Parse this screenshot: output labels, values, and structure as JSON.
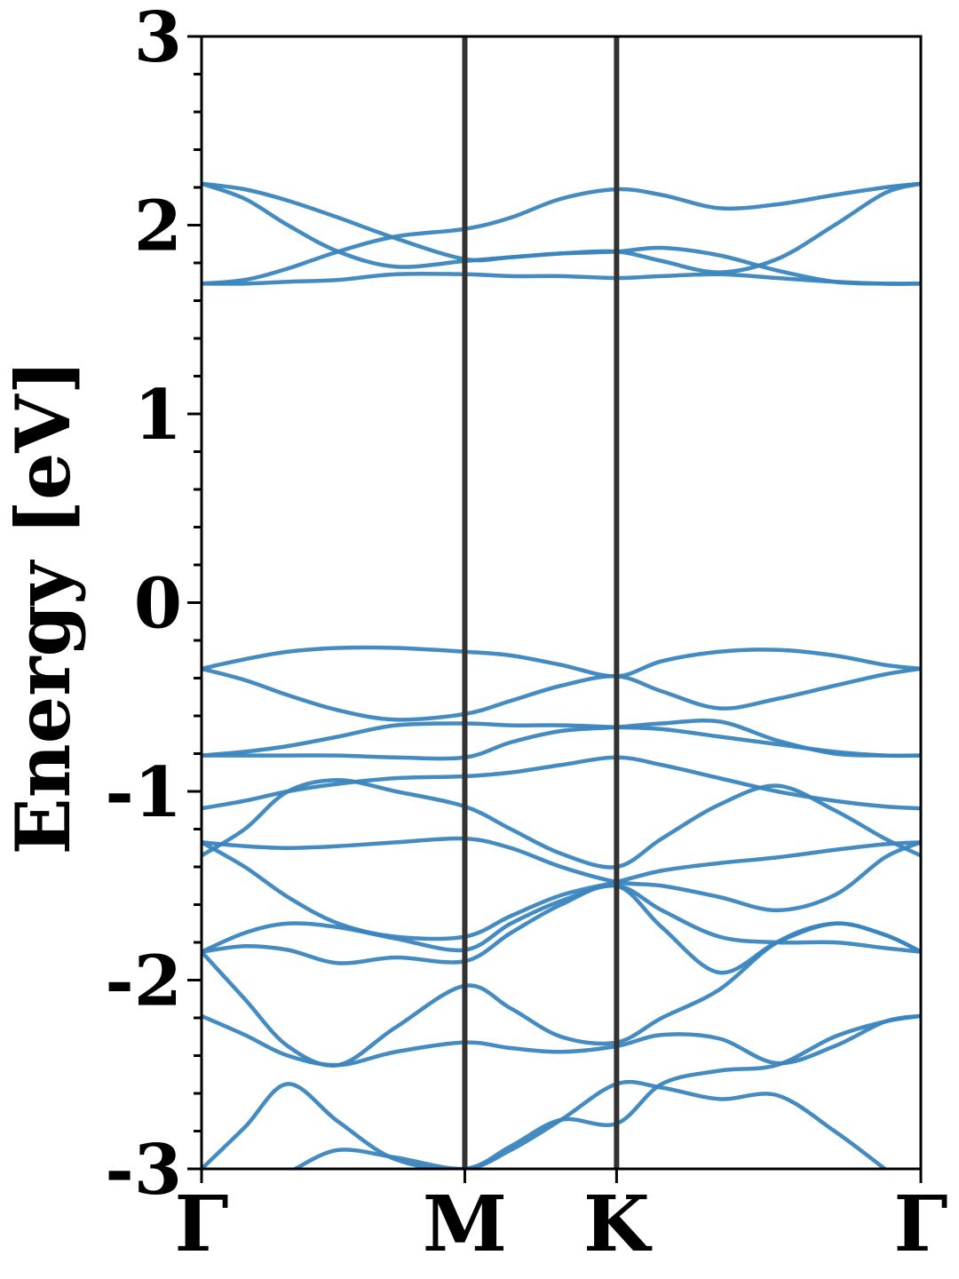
{
  "chart_data": {
    "type": "line",
    "ylabel": "Energy [eV]",
    "ylim": [
      -3,
      3
    ],
    "yticks": [
      {
        "value": 3,
        "label": "3"
      },
      {
        "value": 2,
        "label": "2"
      },
      {
        "value": 1,
        "label": "1"
      },
      {
        "value": 0,
        "label": "0"
      },
      {
        "value": -1,
        "label": "-1"
      },
      {
        "value": -2,
        "label": "-2"
      },
      {
        "value": -3,
        "label": "-3"
      }
    ],
    "xlim": [
      0,
      1
    ],
    "kpoints": [
      {
        "label": "Γ",
        "x": 0.0
      },
      {
        "label": "M",
        "x": 0.366
      },
      {
        "label": "K",
        "x": 0.577
      },
      {
        "label": "Γ",
        "x": 1.0
      }
    ],
    "grid": false,
    "colors": {
      "bands": "#3a85bf",
      "kpoint_lines": "#333333"
    },
    "series": [
      {
        "x": [
          0,
          0.06,
          0.12,
          0.19,
          0.27,
          0.366,
          0.43,
          0.5,
          0.577,
          0.64,
          0.72,
          0.8,
          0.88,
          0.95,
          1.0
        ],
        "y": [
          2.22,
          2.19,
          2.13,
          2.04,
          1.93,
          1.82,
          1.83,
          1.85,
          1.86,
          1.88,
          1.84,
          1.76,
          1.7,
          1.69,
          1.69
        ]
      },
      {
        "x": [
          0,
          0.06,
          0.12,
          0.19,
          0.27,
          0.366,
          0.43,
          0.5,
          0.577,
          0.64,
          0.72,
          0.8,
          0.88,
          0.95,
          1.0
        ],
        "y": [
          2.22,
          2.14,
          2.0,
          1.86,
          1.78,
          1.81,
          1.83,
          1.85,
          1.86,
          1.81,
          1.75,
          1.82,
          2.0,
          2.17,
          2.22
        ]
      },
      {
        "x": [
          0,
          0.06,
          0.12,
          0.19,
          0.27,
          0.366,
          0.43,
          0.5,
          0.577,
          0.64,
          0.72,
          0.8,
          0.88,
          0.95,
          1.0
        ],
        "y": [
          1.69,
          1.71,
          1.77,
          1.86,
          1.94,
          1.98,
          2.04,
          2.14,
          2.19,
          2.16,
          2.09,
          2.11,
          2.16,
          2.2,
          2.22
        ]
      },
      {
        "x": [
          0,
          0.06,
          0.12,
          0.19,
          0.27,
          0.366,
          0.43,
          0.5,
          0.577,
          0.64,
          0.72,
          0.8,
          0.88,
          0.95,
          1.0
        ],
        "y": [
          1.69,
          1.69,
          1.7,
          1.71,
          1.74,
          1.74,
          1.73,
          1.73,
          1.72,
          1.73,
          1.74,
          1.72,
          1.7,
          1.69,
          1.69
        ]
      },
      {
        "x": [
          0,
          0.06,
          0.12,
          0.19,
          0.27,
          0.366,
          0.43,
          0.5,
          0.577,
          0.64,
          0.72,
          0.8,
          0.88,
          0.95,
          1.0
        ],
        "y": [
          -0.35,
          -0.3,
          -0.26,
          -0.24,
          -0.24,
          -0.26,
          -0.28,
          -0.33,
          -0.39,
          -0.31,
          -0.26,
          -0.25,
          -0.28,
          -0.33,
          -0.35
        ]
      },
      {
        "x": [
          0,
          0.06,
          0.12,
          0.19,
          0.27,
          0.366,
          0.43,
          0.5,
          0.577,
          0.64,
          0.72,
          0.8,
          0.88,
          0.95,
          1.0
        ],
        "y": [
          -0.35,
          -0.41,
          -0.49,
          -0.57,
          -0.62,
          -0.59,
          -0.52,
          -0.44,
          -0.39,
          -0.47,
          -0.56,
          -0.51,
          -0.44,
          -0.38,
          -0.35
        ]
      },
      {
        "x": [
          0,
          0.06,
          0.12,
          0.19,
          0.27,
          0.366,
          0.43,
          0.5,
          0.577,
          0.64,
          0.72,
          0.8,
          0.88,
          0.95,
          1.0
        ],
        "y": [
          -0.81,
          -0.79,
          -0.76,
          -0.71,
          -0.65,
          -0.64,
          -0.65,
          -0.65,
          -0.66,
          -0.67,
          -0.71,
          -0.75,
          -0.79,
          -0.81,
          -0.81
        ]
      },
      {
        "x": [
          0,
          0.06,
          0.12,
          0.19,
          0.27,
          0.366,
          0.43,
          0.5,
          0.577,
          0.64,
          0.72,
          0.8,
          0.88,
          0.95,
          1.0
        ],
        "y": [
          -0.81,
          -0.81,
          -0.81,
          -0.81,
          -0.82,
          -0.82,
          -0.74,
          -0.68,
          -0.66,
          -0.64,
          -0.63,
          -0.73,
          -0.8,
          -0.81,
          -0.81
        ]
      },
      {
        "x": [
          0,
          0.06,
          0.12,
          0.19,
          0.27,
          0.366,
          0.43,
          0.5,
          0.577,
          0.64,
          0.72,
          0.8,
          0.88,
          0.95,
          1.0
        ],
        "y": [
          -1.09,
          -1.05,
          -1.0,
          -0.96,
          -0.93,
          -0.92,
          -0.9,
          -0.86,
          -0.82,
          -0.86,
          -0.93,
          -1.0,
          -1.05,
          -1.08,
          -1.09
        ]
      },
      {
        "x": [
          0,
          0.06,
          0.12,
          0.19,
          0.27,
          0.366,
          0.43,
          0.5,
          0.577,
          0.64,
          0.72,
          0.8,
          0.88,
          0.95,
          1.0
        ],
        "y": [
          -1.34,
          -1.2,
          -1.0,
          -0.94,
          -1.0,
          -1.08,
          -1.2,
          -1.33,
          -1.4,
          -1.25,
          -1.07,
          -0.97,
          -1.1,
          -1.25,
          -1.34
        ]
      },
      {
        "x": [
          0,
          0.06,
          0.12,
          0.19,
          0.27,
          0.366,
          0.43,
          0.5,
          0.577,
          0.64,
          0.72,
          0.8,
          0.88,
          0.95,
          1.0
        ],
        "y": [
          -1.27,
          -1.29,
          -1.3,
          -1.29,
          -1.27,
          -1.25,
          -1.3,
          -1.4,
          -1.48,
          -1.5,
          -1.56,
          -1.63,
          -1.55,
          -1.35,
          -1.27
        ]
      },
      {
        "x": [
          0,
          0.06,
          0.12,
          0.19,
          0.27,
          0.366,
          0.43,
          0.5,
          0.577,
          0.64,
          0.72,
          0.8,
          0.88,
          0.95,
          1.0
        ],
        "y": [
          -1.27,
          -1.4,
          -1.56,
          -1.7,
          -1.77,
          -1.77,
          -1.66,
          -1.55,
          -1.48,
          -1.42,
          -1.38,
          -1.35,
          -1.31,
          -1.28,
          -1.27
        ]
      },
      {
        "x": [
          0,
          0.06,
          0.12,
          0.19,
          0.27,
          0.366,
          0.43,
          0.5,
          0.577,
          0.64,
          0.72,
          0.8,
          0.88,
          0.95,
          1.0
        ],
        "y": [
          -1.85,
          -1.75,
          -1.7,
          -1.72,
          -1.78,
          -1.84,
          -1.7,
          -1.58,
          -1.5,
          -1.63,
          -1.77,
          -1.8,
          -1.8,
          -1.83,
          -1.85
        ]
      },
      {
        "x": [
          0,
          0.06,
          0.12,
          0.19,
          0.27,
          0.366,
          0.43,
          0.5,
          0.577,
          0.64,
          0.72,
          0.8,
          0.88,
          0.95,
          1.0
        ],
        "y": [
          -1.85,
          -1.82,
          -1.84,
          -1.91,
          -1.88,
          -1.9,
          -1.75,
          -1.6,
          -1.5,
          -1.72,
          -1.96,
          -1.8,
          -1.7,
          -1.76,
          -1.85
        ]
      },
      {
        "x": [
          0,
          0.06,
          0.12,
          0.19,
          0.27,
          0.366,
          0.43,
          0.5,
          0.577,
          0.64,
          0.72,
          0.8,
          0.88,
          0.95,
          1.0
        ],
        "y": [
          -1.85,
          -2.1,
          -2.35,
          -2.45,
          -2.25,
          -2.03,
          -2.15,
          -2.3,
          -2.33,
          -2.2,
          -2.05,
          -1.8,
          -1.7,
          -1.76,
          -1.85
        ]
      },
      {
        "x": [
          0,
          0.06,
          0.12,
          0.19,
          0.27,
          0.366,
          0.43,
          0.5,
          0.577,
          0.64,
          0.72,
          0.8,
          0.88,
          0.95,
          1.0
        ],
        "y": [
          -2.19,
          -2.29,
          -2.4,
          -2.45,
          -2.38,
          -2.33,
          -2.36,
          -2.38,
          -2.35,
          -2.29,
          -2.31,
          -2.44,
          -2.35,
          -2.22,
          -2.19
        ]
      },
      {
        "x": [
          0,
          0.06,
          0.12,
          0.19,
          0.27,
          0.366,
          0.43,
          0.5,
          0.577,
          0.64,
          0.72,
          0.8,
          0.88,
          0.95,
          1.0
        ],
        "y": [
          -3.0,
          -2.78,
          -2.55,
          -2.75,
          -2.95,
          -3.0,
          -2.88,
          -2.74,
          -2.76,
          -2.55,
          -2.48,
          -2.45,
          -2.3,
          -2.22,
          -2.19
        ]
      },
      {
        "x": [
          0.13,
          0.19,
          0.27,
          0.366,
          0.43,
          0.5,
          0.577,
          0.64,
          0.72,
          0.8,
          0.88,
          0.95
        ],
        "y": [
          -3.0,
          -2.9,
          -2.94,
          -3.0,
          -2.9,
          -2.74,
          -2.55,
          -2.57,
          -2.63,
          -2.61,
          -2.8,
          -3.0
        ]
      }
    ]
  }
}
